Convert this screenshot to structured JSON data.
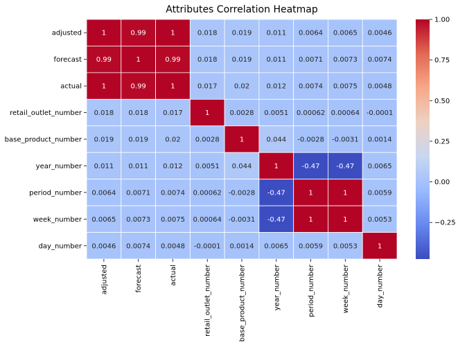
{
  "chart_data": {
    "type": "heatmap",
    "title": "Attributes Correlation Heatmap",
    "xlabel": "",
    "ylabel": "",
    "x_categories": [
      "adjusted",
      "forecast",
      "actual",
      "retail_outlet_number",
      "base_product_number",
      "year_number",
      "period_number",
      "week_number",
      "day_number"
    ],
    "y_categories": [
      "adjusted",
      "forecast",
      "actual",
      "retail_outlet_number",
      "base_product_number",
      "year_number",
      "period_number",
      "week_number",
      "day_number"
    ],
    "values": [
      [
        1,
        0.99,
        1,
        0.018,
        0.019,
        0.011,
        0.0064,
        0.0065,
        0.0046
      ],
      [
        0.99,
        1,
        0.99,
        0.018,
        0.019,
        0.011,
        0.0071,
        0.0073,
        0.0074
      ],
      [
        1,
        0.99,
        1,
        0.017,
        0.02,
        0.012,
        0.0074,
        0.0075,
        0.0048
      ],
      [
        0.018,
        0.018,
        0.017,
        1,
        0.0028,
        0.0051,
        0.00062,
        0.00064,
        -0.0001
      ],
      [
        0.019,
        0.019,
        0.02,
        0.0028,
        1,
        0.044,
        -0.0028,
        -0.0031,
        0.0014
      ],
      [
        0.011,
        0.011,
        0.012,
        0.0051,
        0.044,
        1,
        -0.47,
        -0.47,
        0.0065
      ],
      [
        0.0064,
        0.0071,
        0.0074,
        0.00062,
        -0.0028,
        -0.47,
        1,
        1,
        0.0059
      ],
      [
        0.0065,
        0.0073,
        0.0075,
        0.00064,
        -0.0031,
        -0.47,
        1,
        1,
        0.0053
      ],
      [
        0.0046,
        0.0074,
        0.0048,
        -0.0001,
        0.0014,
        0.0065,
        0.0059,
        0.0053,
        1
      ]
    ],
    "cell_labels": [
      [
        "1",
        "0.99",
        "1",
        "0.018",
        "0.019",
        "0.011",
        "0.0064",
        "0.0065",
        "0.0046"
      ],
      [
        "0.99",
        "1",
        "0.99",
        "0.018",
        "0.019",
        "0.011",
        "0.0071",
        "0.0073",
        "0.0074"
      ],
      [
        "1",
        "0.99",
        "1",
        "0.017",
        "0.02",
        "0.012",
        "0.0074",
        "0.0075",
        "0.0048"
      ],
      [
        "0.018",
        "0.018",
        "0.017",
        "1",
        "0.0028",
        "0.0051",
        "0.00062",
        "0.00064",
        "-0.0001"
      ],
      [
        "0.019",
        "0.019",
        "0.02",
        "0.0028",
        "1",
        "0.044",
        "-0.0028",
        "-0.0031",
        "0.0014"
      ],
      [
        "0.011",
        "0.011",
        "0.012",
        "0.0051",
        "0.044",
        "1",
        "-0.47",
        "-0.47",
        "0.0065"
      ],
      [
        "0.0064",
        "0.0071",
        "0.0074",
        "0.00062",
        "-0.0028",
        "-0.47",
        "1",
        "1",
        "0.0059"
      ],
      [
        "0.0065",
        "0.0073",
        "0.0075",
        "0.00064",
        "-0.0031",
        "-0.47",
        "1",
        "1",
        "0.0053"
      ],
      [
        "0.0046",
        "0.0074",
        "0.0048",
        "-0.0001",
        "0.0014",
        "0.0065",
        "0.0059",
        "0.0053",
        "1"
      ]
    ],
    "colormap": "coolwarm",
    "colormap_stops": [
      "#3b4cc0",
      "#6788ee",
      "#9abbff",
      "#c9d7f0",
      "#edd1c2",
      "#f7a889",
      "#e26952",
      "#b40426"
    ],
    "vmin": -0.475,
    "vmax": 1,
    "colorbar": {
      "ticks": [
        1.0,
        0.75,
        0.5,
        0.25,
        0.0,
        -0.25
      ],
      "tick_labels": [
        "1.00",
        "0.75",
        "0.50",
        "0.25",
        "0.00",
        "−0.25"
      ],
      "placement": "right"
    },
    "cell_border_color": "#ffffff",
    "annotation_colors": {
      "on_light": "#262626",
      "on_dark": "#ffffff"
    },
    "grid": false
  }
}
